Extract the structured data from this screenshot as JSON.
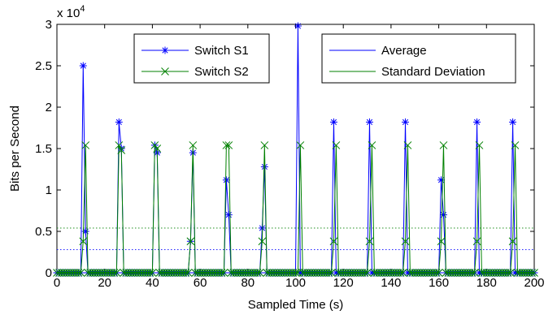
{
  "chart_data": {
    "type": "line",
    "xlabel": "Sampled Time (s)",
    "ylabel": "Bits per Second",
    "y_multiplier": "x 10",
    "y_multiplier_exponent": "4",
    "xlim": [
      0,
      200
    ],
    "ylim": [
      0,
      30000
    ],
    "x_ticks": [
      0,
      20,
      40,
      60,
      80,
      100,
      120,
      140,
      160,
      180,
      200
    ],
    "y_ticks": [
      0,
      5000,
      10000,
      15000,
      20000,
      25000,
      30000
    ],
    "y_tick_labels": [
      "0",
      "0.5",
      "1",
      "1.5",
      "2",
      "2.5",
      "3"
    ],
    "grid": false,
    "legends": [
      {
        "placement": "top-center-left",
        "entries": [
          "Switch S1",
          "Switch S2"
        ]
      },
      {
        "placement": "top-center-right",
        "entries": [
          "Average",
          "Standard Deviation"
        ]
      }
    ],
    "series": [
      {
        "name": "Switch S1",
        "color": "#0000ff",
        "marker": "asterisk",
        "peaks": [
          {
            "x": [
              11,
              12,
              13
            ],
            "y": [
              25000,
              5000,
              0
            ]
          },
          {
            "x": [
              26,
              27,
              28
            ],
            "y": [
              18200,
              15000,
              0
            ]
          },
          {
            "x": [
              41,
              42,
              43
            ],
            "y": [
              15400,
              14500,
              0
            ]
          },
          {
            "x": [
              56,
              57,
              58
            ],
            "y": [
              3800,
              14500,
              0
            ]
          },
          {
            "x": [
              71,
              72,
              73
            ],
            "y": [
              11200,
              7000,
              0
            ]
          },
          {
            "x": [
              86,
              87,
              88
            ],
            "y": [
              5400,
              12800,
              0
            ]
          },
          {
            "x": [
              101,
              102,
              103
            ],
            "y": [
              29800,
              0,
              0
            ]
          },
          {
            "x": [
              116,
              117,
              118
            ],
            "y": [
              18200,
              0,
              0
            ]
          },
          {
            "x": [
              131,
              132,
              133
            ],
            "y": [
              18200,
              0,
              0
            ]
          },
          {
            "x": [
              146,
              147,
              148
            ],
            "y": [
              18200,
              0,
              0
            ]
          },
          {
            "x": [
              161,
              162,
              163
            ],
            "y": [
              11200,
              7000,
              0
            ]
          },
          {
            "x": [
              176,
              177,
              178
            ],
            "y": [
              18200,
              0,
              0
            ]
          },
          {
            "x": [
              191,
              192,
              193
            ],
            "y": [
              18200,
              0,
              0
            ]
          }
        ]
      },
      {
        "name": "Switch S2",
        "color": "#008000",
        "marker": "x",
        "peaks": [
          {
            "x": [
              11,
              12,
              13
            ],
            "y": [
              3800,
              15400,
              0
            ]
          },
          {
            "x": [
              26,
              27,
              28
            ],
            "y": [
              15400,
              14800,
              0
            ]
          },
          {
            "x": [
              41,
              42,
              43
            ],
            "y": [
              15400,
              15000,
              0
            ]
          },
          {
            "x": [
              56,
              57,
              58
            ],
            "y": [
              3800,
              15400,
              0
            ]
          },
          {
            "x": [
              71,
              72,
              73
            ],
            "y": [
              15400,
              15400,
              0
            ]
          },
          {
            "x": [
              86,
              87,
              88
            ],
            "y": [
              3800,
              15400,
              0
            ]
          },
          {
            "x": [
              101,
              102,
              103
            ],
            "y": [
              0,
              15400,
              0
            ]
          },
          {
            "x": [
              116,
              117,
              118
            ],
            "y": [
              3800,
              15400,
              0
            ]
          },
          {
            "x": [
              131,
              132,
              133
            ],
            "y": [
              3800,
              15400,
              0
            ]
          },
          {
            "x": [
              146,
              147,
              148
            ],
            "y": [
              3800,
              15400,
              0
            ]
          },
          {
            "x": [
              161,
              162,
              163
            ],
            "y": [
              3800,
              15400,
              0
            ]
          },
          {
            "x": [
              176,
              177,
              178
            ],
            "y": [
              3800,
              15400,
              0
            ]
          },
          {
            "x": [
              191,
              192,
              193
            ],
            "y": [
              3800,
              15400,
              0
            ]
          }
        ]
      }
    ],
    "reference_lines": [
      {
        "name": "Average",
        "color": "#0000ff",
        "style": "dotted",
        "y": 2800
      },
      {
        "name": "Standard Deviation",
        "color": "#008000",
        "style": "dotted",
        "y": 5400
      }
    ]
  }
}
